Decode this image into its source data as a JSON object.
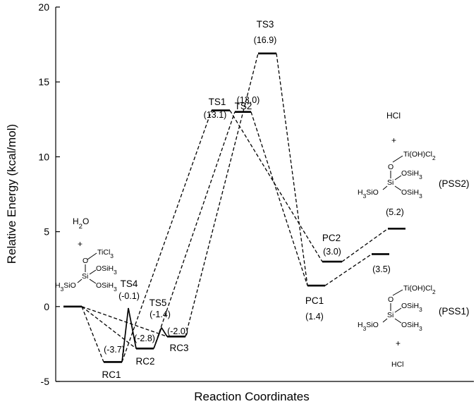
{
  "chart_data": {
    "type": "line",
    "xlabel": "Reaction Coordinates",
    "ylabel": "Relative Energy (kcal/mol)",
    "ylim": [
      -5,
      20
    ],
    "yticks": [
      "-5",
      "0",
      "5",
      "10",
      "15",
      "20"
    ],
    "grid": false,
    "levels": [
      {
        "id": "start",
        "energy": 0.0,
        "label": "",
        "energy_text": ""
      },
      {
        "id": "rc1",
        "energy": -3.7,
        "label": "RC1",
        "energy_text": "(-3.7)"
      },
      {
        "id": "ts4",
        "energy": -0.1,
        "label": "TS4",
        "energy_text": "(-0.1)"
      },
      {
        "id": "rc2",
        "energy": -2.8,
        "label": "RC2",
        "energy_text": "(-2.8)"
      },
      {
        "id": "ts5",
        "energy": -1.4,
        "label": "TS5",
        "energy_text": "(-1.4)"
      },
      {
        "id": "rc3",
        "energy": -2.0,
        "label": "RC3",
        "energy_text": "(-2.0)"
      },
      {
        "id": "ts1",
        "energy": 13.1,
        "label": "TS1",
        "energy_text": "(13.1)"
      },
      {
        "id": "ts2",
        "energy": 13.0,
        "label": "TS2",
        "energy_text": "(13.0)"
      },
      {
        "id": "ts3",
        "energy": 16.9,
        "label": "TS3",
        "energy_text": "(16.9)"
      },
      {
        "id": "pc1",
        "energy": 1.4,
        "label": "PC1",
        "energy_text": "(1.4)"
      },
      {
        "id": "pc2",
        "energy": 3.0,
        "label": "PC2",
        "energy_text": "(3.0)"
      },
      {
        "id": "pss1",
        "energy": 3.5,
        "label": "",
        "energy_text": "(3.5)"
      },
      {
        "id": "pss2",
        "energy": 5.2,
        "label": "",
        "energy_text": "(5.2)"
      }
    ],
    "connections": [
      {
        "from": "start",
        "to": "rc1",
        "style": "dashed"
      },
      {
        "from": "start",
        "to": "rc2",
        "style": "dashed"
      },
      {
        "from": "start",
        "to": "rc3",
        "style": "dashed"
      },
      {
        "from": "rc1",
        "to": "ts4",
        "style": "solid"
      },
      {
        "from": "ts4",
        "to": "rc2",
        "style": "solid"
      },
      {
        "from": "rc2",
        "to": "ts5",
        "style": "solid"
      },
      {
        "from": "ts5",
        "to": "rc3",
        "style": "solid"
      },
      {
        "from": "rc1",
        "to": "ts1",
        "style": "dashed"
      },
      {
        "from": "rc2",
        "to": "ts2",
        "style": "dashed"
      },
      {
        "from": "rc3",
        "to": "ts3",
        "style": "dashed"
      },
      {
        "from": "ts1",
        "to": "pc2",
        "style": "dashed"
      },
      {
        "from": "ts2",
        "to": "pc1",
        "style": "dashed"
      },
      {
        "from": "ts3",
        "to": "pc1",
        "style": "dashed"
      },
      {
        "from": "pc1",
        "to": "pss1",
        "style": "dashed"
      },
      {
        "from": "pc2",
        "to": "pss2",
        "style": "dashed"
      }
    ],
    "annotations": {
      "reactants": {
        "h2o": "H2O",
        "plus": "+",
        "ticl3": "TiCl3",
        "o": "O",
        "si": "Si",
        "osih3_a": "OSiH3",
        "osih3_b": "OSiH3",
        "h3sio": "H3SiO"
      },
      "pss2": {
        "hcl": "HCl",
        "plus": "+",
        "ti": "Ti(OH)Cl2",
        "o": "O",
        "si": "Si",
        "osih3_a": "OSiH3",
        "osih3_b": "OSiH3",
        "h3sio": "H3SiO",
        "name": "(PSS2)"
      },
      "pss1": {
        "ti": "Ti(OH)Cl2",
        "o": "O",
        "si": "Si",
        "osih3_a": "OSiH3",
        "osih3_b": "OSiH3",
        "h3sio": "H3SiO",
        "plus": "+",
        "hcl": "HCl",
        "name": "(PSS1)"
      }
    }
  }
}
